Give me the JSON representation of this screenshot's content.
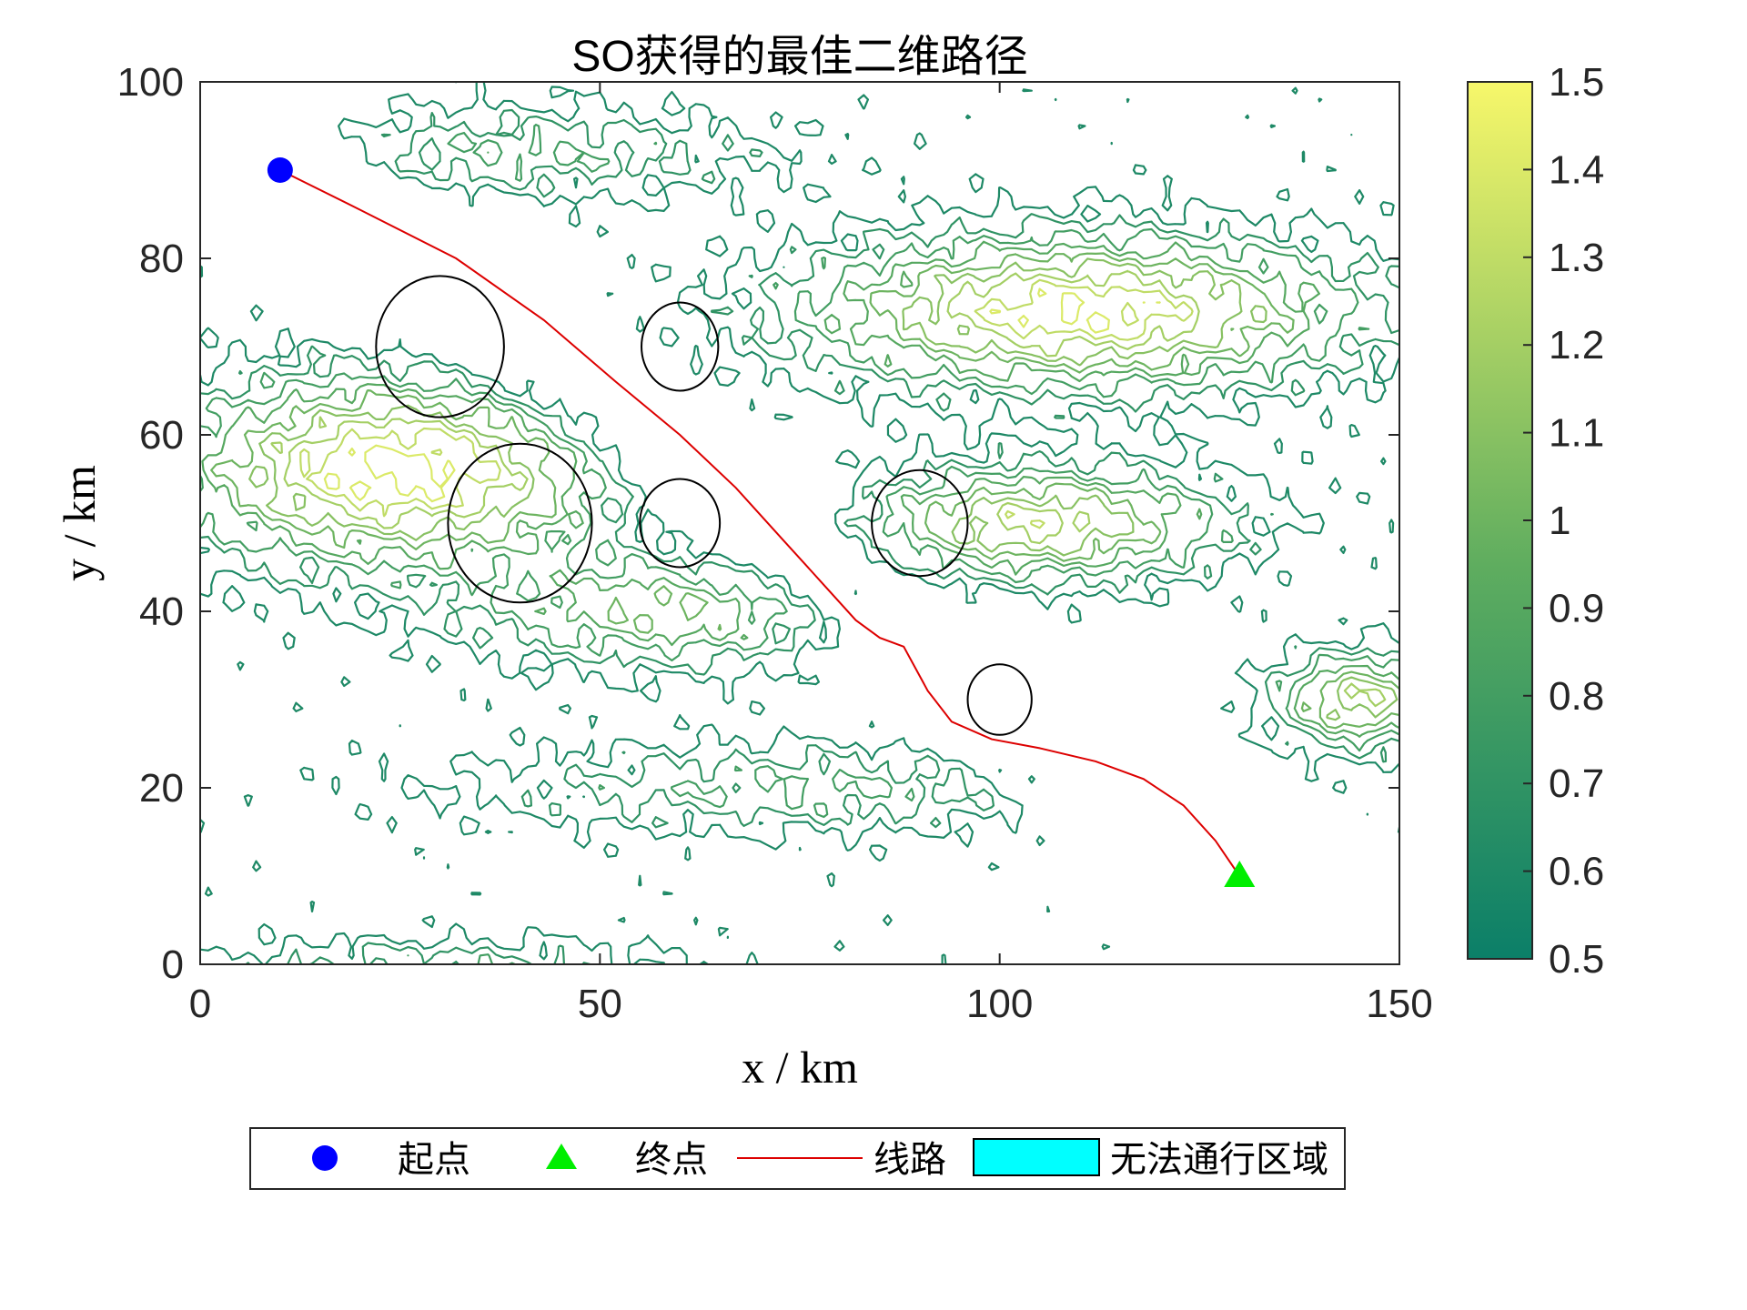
{
  "chart_data": {
    "type": "contour",
    "title": "SO获得的最佳二维路径",
    "xlabel": "x / km",
    "ylabel": "y / km",
    "xlim": [
      0,
      150
    ],
    "ylim": [
      0,
      100
    ],
    "xticks": [
      "0",
      "50",
      "100",
      "150"
    ],
    "yticks": [
      "0",
      "20",
      "40",
      "60",
      "80",
      "100"
    ],
    "colorbar": {
      "range": [
        0.5,
        1.5
      ],
      "ticks": [
        "0.5",
        "0.6",
        "0.7",
        "0.8",
        "0.9",
        "1",
        "1.1",
        "1.2",
        "1.3",
        "1.4",
        "1.5"
      ],
      "color_low": "#0b7f68",
      "color_mid": "#5fad5f",
      "color_high": "#f7f76a"
    },
    "start": {
      "x": 10,
      "y": 90,
      "color": "#0000ff"
    },
    "end": {
      "x": 130,
      "y": 10,
      "color": "#00ee00"
    },
    "route": {
      "color": "#dd0000",
      "points": [
        [
          10,
          90
        ],
        [
          20,
          85.5
        ],
        [
          32,
          80
        ],
        [
          43,
          73
        ],
        [
          52,
          66
        ],
        [
          60,
          60
        ],
        [
          67,
          54
        ],
        [
          73,
          48
        ],
        [
          78,
          43
        ],
        [
          82,
          39
        ],
        [
          85,
          37
        ],
        [
          88,
          36
        ],
        [
          91,
          31
        ],
        [
          94,
          27.5
        ],
        [
          99,
          25.5
        ],
        [
          105,
          24.5
        ],
        [
          112,
          23
        ],
        [
          118,
          21
        ],
        [
          123,
          18
        ],
        [
          127,
          14
        ],
        [
          130,
          10
        ]
      ]
    },
    "no_go_zones": [
      {
        "cx": 30,
        "cy": 70,
        "rx": 8,
        "ry": 8
      },
      {
        "cx": 60,
        "cy": 70,
        "rx": 4.8,
        "ry": 5
      },
      {
        "cx": 40,
        "cy": 50,
        "rx": 9,
        "ry": 9
      },
      {
        "cx": 60,
        "cy": 50,
        "rx": 5,
        "ry": 5
      },
      {
        "cx": 90,
        "cy": 50,
        "rx": 6,
        "ry": 6
      },
      {
        "cx": 100,
        "cy": 30,
        "rx": 4,
        "ry": 4
      }
    ],
    "terrain_peaks": [
      {
        "x": 25,
        "y": 56,
        "h": 0.95,
        "sx": 26,
        "sy": 10
      },
      {
        "x": 110,
        "y": 74,
        "h": 0.9,
        "sx": 32,
        "sy": 8
      },
      {
        "x": 105,
        "y": 50,
        "h": 0.75,
        "sx": 22,
        "sy": 6
      },
      {
        "x": 60,
        "y": 40,
        "h": 0.5,
        "sx": 24,
        "sy": 6
      },
      {
        "x": 145,
        "y": 30,
        "h": 0.7,
        "sx": 10,
        "sy": 5
      },
      {
        "x": 40,
        "y": 92,
        "h": 0.3,
        "sx": 30,
        "sy": 5
      },
      {
        "x": 75,
        "y": 20,
        "h": 0.3,
        "sx": 40,
        "sy": 5
      },
      {
        "x": 30,
        "y": 0,
        "h": 0.25,
        "sx": 30,
        "sy": 3
      }
    ],
    "legend": {
      "placement": "bottom-outside",
      "entries": [
        {
          "label": "起点",
          "marker": "circle"
        },
        {
          "label": "终点",
          "marker": "triangle"
        },
        {
          "label": "线路",
          "marker": "line"
        },
        {
          "label": "无法通行区域",
          "marker": "patch",
          "color": "#00ffff"
        }
      ]
    }
  }
}
